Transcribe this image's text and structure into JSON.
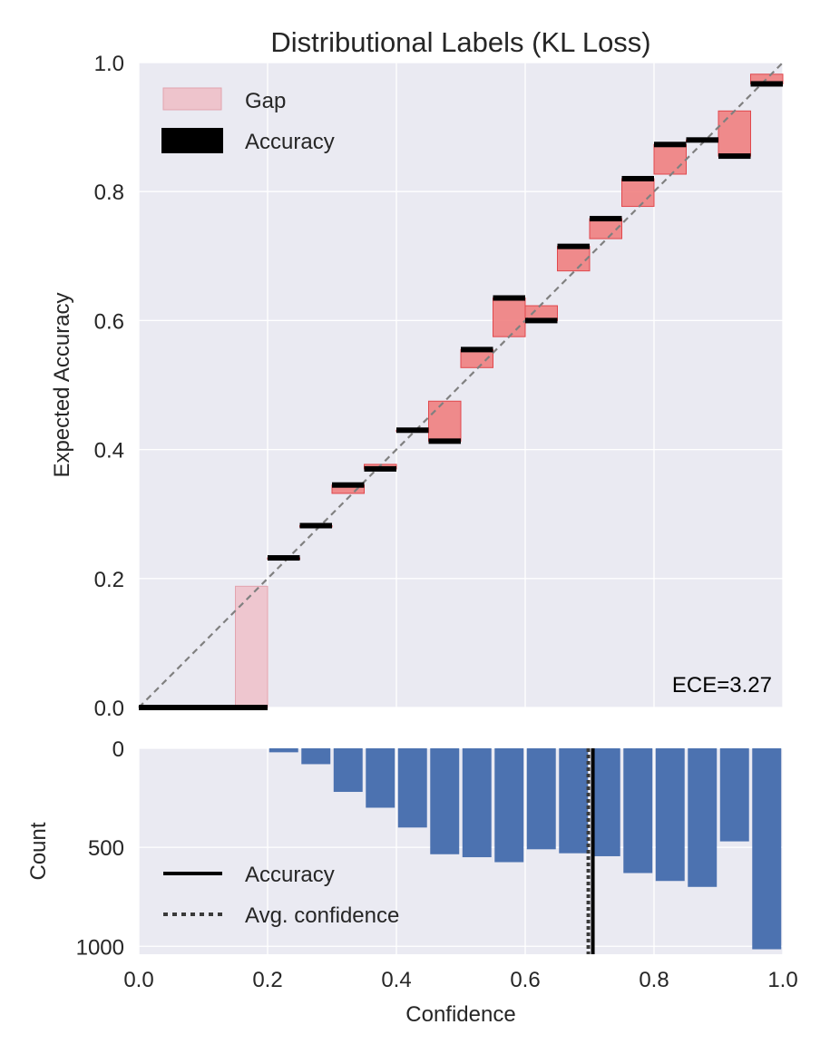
{
  "colors": {
    "panel_bg": "#EAEAF2",
    "grid": "#FFFFFF",
    "gap_fill": "#F08080",
    "gap_edge": "#E0474C",
    "gap_light_fill": "#EEC4CC",
    "accuracy": "#000000",
    "count_bar": "#4C72B0",
    "diagonal": "#808080"
  },
  "chart_data": [
    {
      "type": "bar",
      "name": "reliability-diagram",
      "title": "Distributional Labels (KL Loss)",
      "xlabel": "",
      "ylabel": "Expected Accuracy",
      "xlim": [
        0,
        1
      ],
      "ylim": [
        0,
        1
      ],
      "xticks": [
        0.0,
        0.2,
        0.4,
        0.6,
        0.8,
        1.0
      ],
      "yticks": [
        0.0,
        0.2,
        0.4,
        0.6,
        0.8,
        1.0
      ],
      "xtick_labels": [
        "0.0",
        "0.2",
        "0.4",
        "0.6",
        "0.8",
        "1.0"
      ],
      "ytick_labels": [
        "0.0",
        "0.2",
        "0.4",
        "0.6",
        "0.8",
        "1.0"
      ],
      "grid": true,
      "bin_edges": [
        0.0,
        0.05,
        0.1,
        0.15,
        0.2,
        0.25,
        0.3,
        0.35,
        0.4,
        0.45,
        0.5,
        0.55,
        0.6,
        0.65,
        0.7,
        0.75,
        0.8,
        0.85,
        0.9,
        0.95,
        1.0
      ],
      "series": [
        {
          "name": "Accuracy",
          "values": [
            0.0,
            0.0,
            0.0,
            0.0,
            0.232,
            0.282,
            0.345,
            0.37,
            0.43,
            0.413,
            0.555,
            0.635,
            0.6,
            0.715,
            0.758,
            0.82,
            0.873,
            0.88,
            0.855,
            0.967
          ]
        },
        {
          "name": "Expected",
          "values": [
            null,
            null,
            null,
            0.188,
            0.232,
            0.282,
            0.332,
            0.377,
            0.43,
            0.475,
            0.527,
            0.575,
            0.623,
            0.677,
            0.727,
            0.777,
            0.827,
            0.88,
            0.925,
            0.982
          ]
        }
      ],
      "legend": [
        "Gap",
        "Accuracy"
      ],
      "legend_position": "top-left",
      "annotation": "ECE=3.27",
      "diagonal": true
    },
    {
      "type": "bar",
      "name": "confidence-histogram",
      "xlabel": "Confidence",
      "ylabel": "Count",
      "xlim": [
        0,
        1
      ],
      "ylim": [
        1040,
        0
      ],
      "inverted_y": true,
      "xticks": [
        0.0,
        0.2,
        0.4,
        0.6,
        0.8,
        1.0
      ],
      "xtick_labels": [
        "0.0",
        "0.2",
        "0.4",
        "0.6",
        "0.8",
        "1.0"
      ],
      "yticks": [
        0,
        500,
        1000
      ],
      "ytick_labels": [
        "0",
        "500",
        "1000"
      ],
      "grid": true,
      "bin_edges": [
        0.0,
        0.05,
        0.1,
        0.15,
        0.2,
        0.25,
        0.3,
        0.35,
        0.4,
        0.45,
        0.5,
        0.55,
        0.6,
        0.65,
        0.7,
        0.75,
        0.8,
        0.85,
        0.9,
        0.95,
        1.0
      ],
      "counts": [
        0,
        0,
        0,
        0,
        20,
        80,
        220,
        300,
        400,
        535,
        550,
        575,
        510,
        530,
        545,
        630,
        670,
        700,
        470,
        1015
      ],
      "accuracy_line": 0.705,
      "avg_confidence_line": 0.698,
      "legend": [
        "Accuracy",
        "Avg. confidence"
      ],
      "legend_position": "bottom-left"
    }
  ]
}
